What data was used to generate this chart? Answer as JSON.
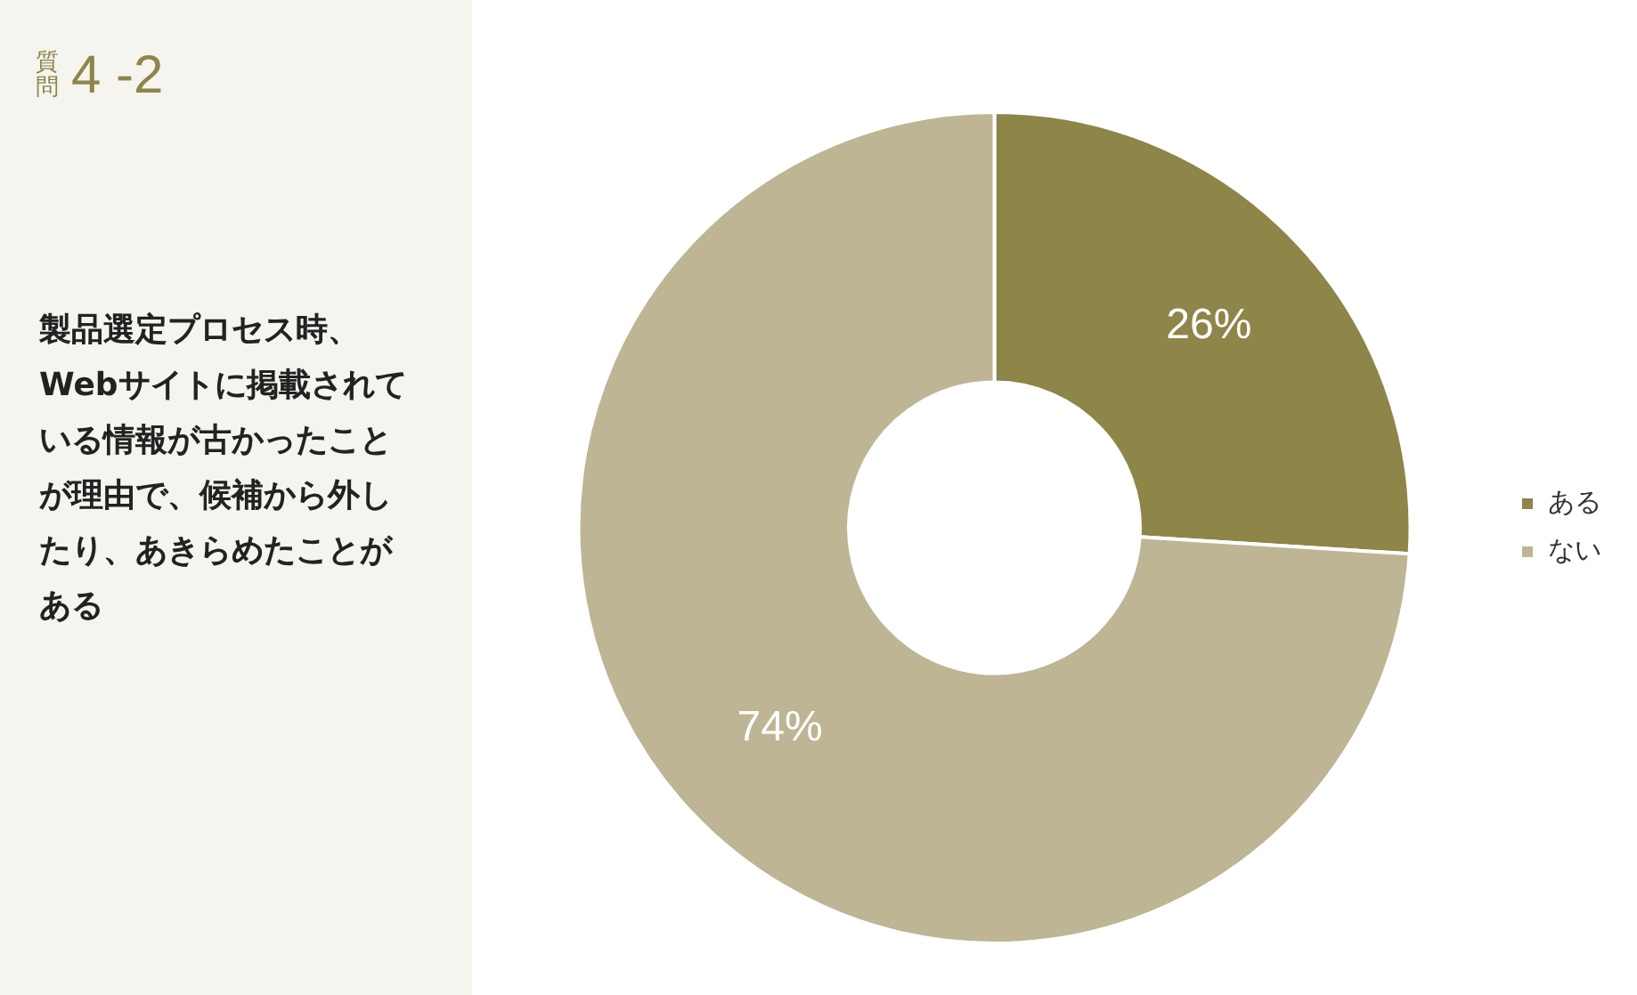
{
  "chart_data": {
    "type": "donut",
    "title": "質問4 -2",
    "subtitle": "製品選定プロセス時、Webサイトに掲載されている情報が古かったことが理由で、候補から外したり、あきらめたことがある",
    "categories": [
      "ある",
      "ない"
    ],
    "values": [
      26,
      74
    ],
    "colors": [
      "#8e8549",
      "#bdb594"
    ],
    "value_labels": [
      "26%",
      "74%"
    ],
    "legend": "right"
  }
}
